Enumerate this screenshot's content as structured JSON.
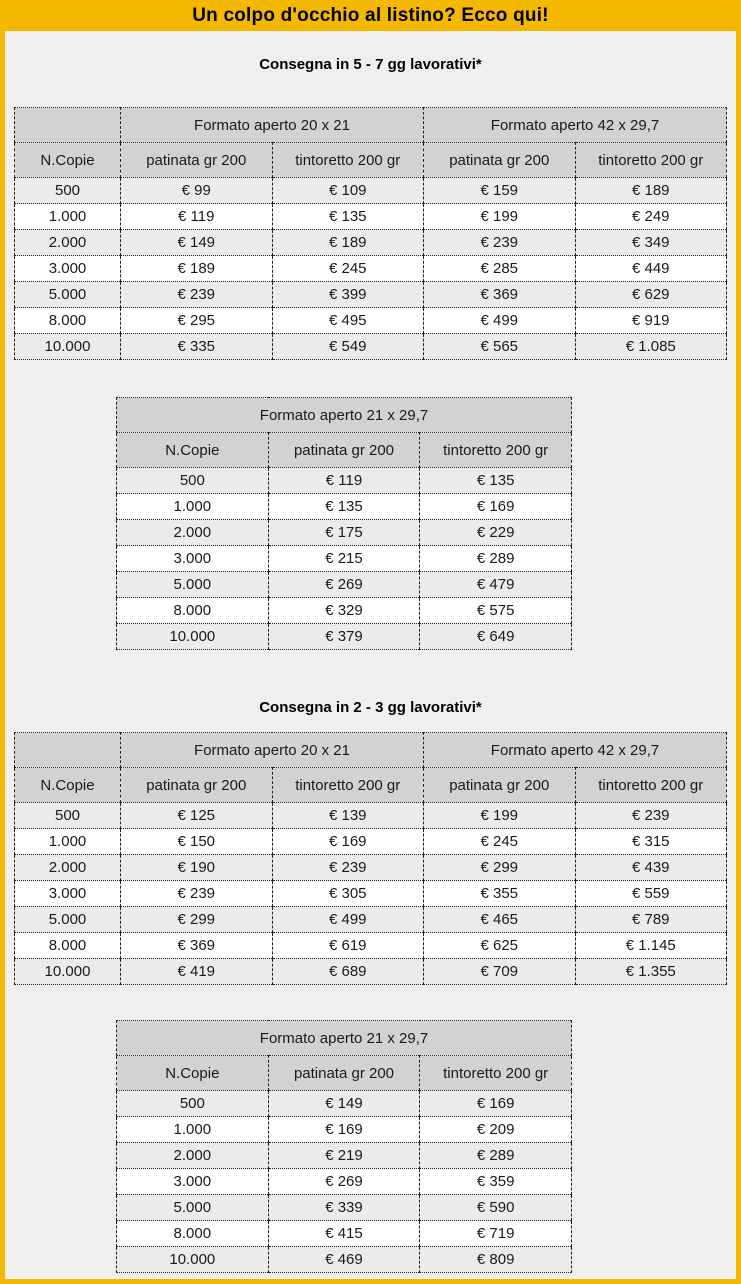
{
  "page": {
    "title": "Un colpo d'occhio al listino? Ecco qui!",
    "colors": {
      "accent": "#F5B800",
      "content_bg": "#EFEFEF",
      "header_bg": "#D2D2D2",
      "row_alt_bg": "#EBEBEB",
      "border": "#222222",
      "text": "#1A1A1A"
    }
  },
  "sections": [
    {
      "heading": "Consegna in 5 - 7 gg lavorativi*",
      "wide_table": {
        "group_headers": [
          "Formato aperto 20 x 21",
          "Formato aperto 42 x 29,7"
        ],
        "col_headers": [
          "N.Copie",
          "patinata gr 200",
          "tintoretto 200 gr",
          "patinata gr 200",
          "tintoretto 200 gr"
        ],
        "rows": [
          [
            "500",
            "€ 99",
            "€ 109",
            "€ 159",
            "€ 189"
          ],
          [
            "1.000",
            "€ 119",
            "€ 135",
            "€ 199",
            "€ 249"
          ],
          [
            "2.000",
            "€ 149",
            "€ 189",
            "€ 239",
            "€ 349"
          ],
          [
            "3.000",
            "€ 189",
            "€ 245",
            "€ 285",
            "€ 449"
          ],
          [
            "5.000",
            "€ 239",
            "€ 399",
            "€ 369",
            "€ 629"
          ],
          [
            "8.000",
            "€ 295",
            "€ 495",
            "€ 499",
            "€ 919"
          ],
          [
            "10.000",
            "€ 335",
            "€ 549",
            "€ 565",
            "€ 1.085"
          ]
        ]
      },
      "narrow_table": {
        "title": "Formato aperto 21 x 29,7",
        "col_headers": [
          "N.Copie",
          "patinata gr 200",
          "tintoretto 200 gr"
        ],
        "rows": [
          [
            "500",
            "€ 119",
            "€ 135"
          ],
          [
            "1.000",
            "€ 135",
            "€ 169"
          ],
          [
            "2.000",
            "€ 175",
            "€ 229"
          ],
          [
            "3.000",
            "€ 215",
            "€ 289"
          ],
          [
            "5.000",
            "€ 269",
            "€ 479"
          ],
          [
            "8.000",
            "€ 329",
            "€ 575"
          ],
          [
            "10.000",
            "€ 379",
            "€ 649"
          ]
        ]
      }
    },
    {
      "heading": "Consegna in 2 - 3 gg lavorativi*",
      "wide_table": {
        "group_headers": [
          "Formato aperto 20 x 21",
          "Formato aperto 42 x 29,7"
        ],
        "col_headers": [
          "N.Copie",
          "patinata gr 200",
          "tintoretto 200 gr",
          "patinata gr 200",
          "tintoretto 200 gr"
        ],
        "rows": [
          [
            "500",
            "€ 125",
            "€ 139",
            "€ 199",
            "€ 239"
          ],
          [
            "1.000",
            "€ 150",
            "€ 169",
            "€ 245",
            "€ 315"
          ],
          [
            "2.000",
            "€ 190",
            "€ 239",
            "€ 299",
            "€ 439"
          ],
          [
            "3.000",
            "€ 239",
            "€ 305",
            "€ 355",
            "€ 559"
          ],
          [
            "5.000",
            "€ 299",
            "€ 499",
            "€ 465",
            "€ 789"
          ],
          [
            "8.000",
            "€ 369",
            "€ 619",
            "€ 625",
            "€ 1.145"
          ],
          [
            "10.000",
            "€ 419",
            "€ 689",
            "€ 709",
            "€ 1.355"
          ]
        ]
      },
      "narrow_table": {
        "title": "Formato aperto 21 x 29,7",
        "col_headers": [
          "N.Copie",
          "patinata gr 200",
          "tintoretto 200 gr"
        ],
        "rows": [
          [
            "500",
            "€ 149",
            "€ 169"
          ],
          [
            "1.000",
            "€ 169",
            "€ 209"
          ],
          [
            "2.000",
            "€ 219",
            "€ 289"
          ],
          [
            "3.000",
            "€ 269",
            "€ 359"
          ],
          [
            "5.000",
            "€ 339",
            "€ 590"
          ],
          [
            "8.000",
            "€ 415",
            "€ 719"
          ],
          [
            "10.000",
            "€ 469",
            "€ 809"
          ]
        ]
      }
    }
  ]
}
